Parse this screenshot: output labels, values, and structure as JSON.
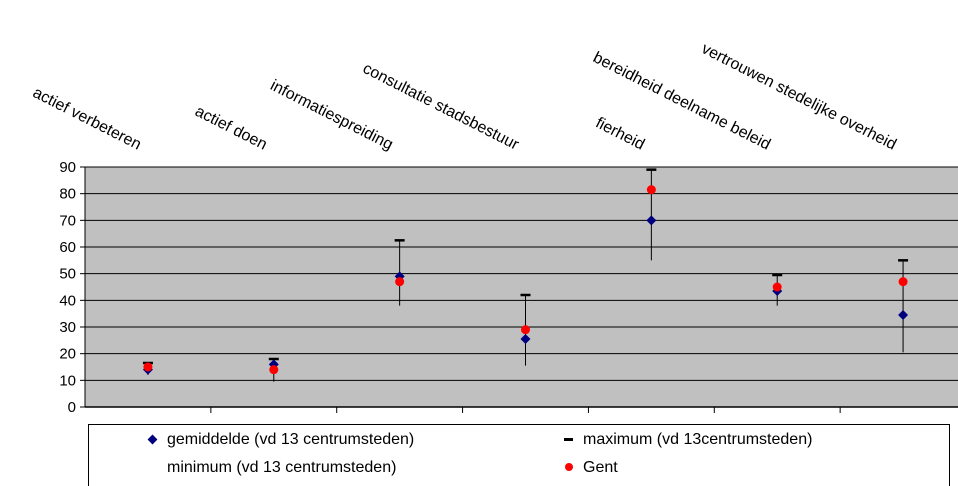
{
  "chart_data": {
    "type": "scatter",
    "categories": [
      "actief verbeteren",
      "actief doen",
      "informatiespreiding",
      "consultatie stadsbestuur",
      "fierheid",
      "bereidheid deelname beleid",
      "vertrouwen stedelijke overheid"
    ],
    "series": [
      {
        "name": "gemiddelde (vd 13 centrumsteden)",
        "marker": "diamond",
        "color": "#00007f",
        "values": [
          14,
          16,
          49,
          25.5,
          70,
          43.5,
          34.5
        ]
      },
      {
        "name": "maximum (vd 13centrumsteden)",
        "marker": "dash",
        "color": "#000000",
        "values": [
          16.5,
          18,
          62.5,
          42,
          89,
          49.5,
          55
        ]
      },
      {
        "name": "minimum (vd 13 centrumsteden)",
        "marker": "none",
        "color": "#000000",
        "values": [
          12,
          9.5,
          38,
          15.5,
          55,
          38,
          20.5
        ]
      },
      {
        "name": "Gent",
        "marker": "circle",
        "color": "#ff0000",
        "values": [
          15,
          14,
          47,
          29,
          81.5,
          45,
          47
        ]
      }
    ],
    "ylim": [
      0,
      90
    ],
    "yticks": [
      0,
      10,
      20,
      30,
      40,
      50,
      60,
      70,
      80,
      90
    ],
    "grid": true,
    "plot_background": "#c0c0c0",
    "legend_position": "bottom"
  }
}
